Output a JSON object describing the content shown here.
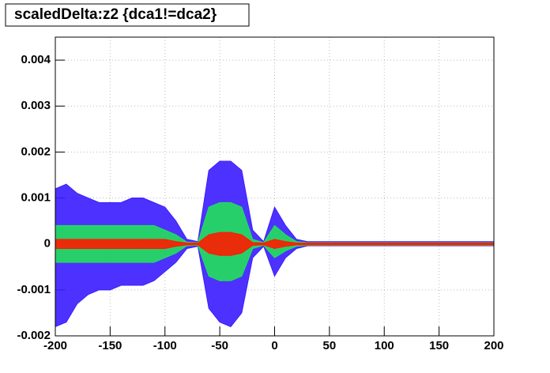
{
  "chart_data": {
    "type": "density-bands",
    "title": "scaledDelta:z2 {dca1!=dca2}",
    "x": [
      -200,
      -190,
      -180,
      -170,
      -160,
      -150,
      -140,
      -130,
      -120,
      -110,
      -100,
      -90,
      -80,
      -70,
      -60,
      -50,
      -40,
      -30,
      -20,
      -10,
      0,
      10,
      20,
      30,
      40,
      50,
      60,
      70,
      80,
      90,
      100,
      110,
      120,
      130,
      140,
      150,
      160,
      170,
      180,
      190,
      200
    ],
    "series": [
      {
        "color": "#3a1cff",
        "upper": [
          0.0012,
          0.0013,
          0.0011,
          0.001,
          0.0009,
          0.0009,
          0.0009,
          0.001,
          0.001,
          0.0009,
          0.0008,
          0.0005,
          0.0001,
          5e-05,
          0.0016,
          0.0018,
          0.0018,
          0.0016,
          0.0003,
          5e-05,
          0.0008,
          0.0004,
          0.0001,
          5e-05,
          5e-05,
          5e-05,
          5e-05,
          5e-05,
          5e-05,
          5e-05,
          5e-05,
          5e-05,
          5e-05,
          5e-05,
          5e-05,
          5e-05,
          5e-05,
          5e-05,
          5e-05,
          5e-05,
          5e-05
        ],
        "lower": [
          -0.0018,
          -0.0017,
          -0.0013,
          -0.0011,
          -0.001,
          -0.001,
          -0.0009,
          -0.0009,
          -0.0009,
          -0.0008,
          -0.0006,
          -0.0004,
          -0.0001,
          -5e-05,
          -0.0014,
          -0.0017,
          -0.0018,
          -0.0015,
          -0.0003,
          -5e-05,
          -0.0007,
          -0.0003,
          -0.0001,
          -4e-05,
          -4e-05,
          -4e-05,
          -4e-05,
          -4e-05,
          -4e-05,
          -4e-05,
          -4e-05,
          -4e-05,
          -4e-05,
          -4e-05,
          -4e-05,
          -4e-05,
          -4e-05,
          -4e-05,
          -4e-05,
          -4e-05,
          -4e-05
        ]
      },
      {
        "color": "#22e05a",
        "upper": [
          0.0004,
          0.0004,
          0.0004,
          0.0004,
          0.0004,
          0.0004,
          0.0004,
          0.0004,
          0.0004,
          0.0004,
          0.0003,
          0.0002,
          4e-05,
          3e-05,
          0.0008,
          0.0009,
          0.0009,
          0.0008,
          0.0001,
          3e-05,
          0.0004,
          0.0002,
          5e-05,
          3e-05,
          3e-05,
          3e-05,
          3e-05,
          3e-05,
          3e-05,
          3e-05,
          3e-05,
          3e-05,
          3e-05,
          3e-05,
          3e-05,
          3e-05,
          3e-05,
          3e-05,
          3e-05,
          3e-05,
          3e-05
        ],
        "lower": [
          -0.0004,
          -0.0004,
          -0.0004,
          -0.0004,
          -0.0004,
          -0.0004,
          -0.0004,
          -0.0004,
          -0.0004,
          -0.0004,
          -0.0003,
          -0.0002,
          -4e-05,
          -3e-05,
          -0.0007,
          -0.0008,
          -0.0008,
          -0.0007,
          -0.0001,
          -3e-05,
          -0.0003,
          -0.00015,
          -5e-05,
          -3e-05,
          -3e-05,
          -3e-05,
          -3e-05,
          -3e-05,
          -3e-05,
          -3e-05,
          -3e-05,
          -3e-05,
          -3e-05,
          -3e-05,
          -3e-05,
          -3e-05,
          -3e-05,
          -3e-05,
          -3e-05,
          -3e-05,
          -3e-05
        ]
      },
      {
        "color": "#ff1a00",
        "upper": [
          0.0001,
          0.0001,
          0.0001,
          0.0001,
          0.0001,
          0.0001,
          0.0001,
          0.0001,
          0.0001,
          0.0001,
          0.0001,
          5e-05,
          2e-05,
          2e-05,
          0.0002,
          0.00025,
          0.00025,
          0.0002,
          3e-05,
          2e-05,
          0.0001,
          5e-05,
          2e-05,
          2e-05,
          2e-05,
          2e-05,
          2e-05,
          2e-05,
          2e-05,
          2e-05,
          2e-05,
          2e-05,
          2e-05,
          2e-05,
          2e-05,
          2e-05,
          2e-05,
          2e-05,
          2e-05,
          2e-05,
          2e-05
        ],
        "lower": [
          -0.0001,
          -0.0001,
          -0.0001,
          -0.0001,
          -0.0001,
          -0.0001,
          -0.0001,
          -0.0001,
          -0.0001,
          -0.0001,
          -0.0001,
          -5e-05,
          -2e-05,
          -2e-05,
          -0.0002,
          -0.00025,
          -0.00025,
          -0.0002,
          -3e-05,
          -2e-05,
          -0.0001,
          -5e-05,
          -2e-05,
          -2e-05,
          -2e-05,
          -2e-05,
          -2e-05,
          -2e-05,
          -2e-05,
          -2e-05,
          -2e-05,
          -2e-05,
          -2e-05,
          -2e-05,
          -2e-05,
          -2e-05,
          -2e-05,
          -2e-05,
          -2e-05,
          -2e-05,
          -2e-05
        ]
      }
    ],
    "xlim": [
      -200,
      200
    ],
    "xticks": [
      -200,
      -150,
      -100,
      -50,
      0,
      50,
      100,
      150,
      200
    ],
    "ylim": [
      -0.002,
      0.0045
    ],
    "yticks": [
      -0.002,
      -0.001,
      0,
      0.001,
      0.002,
      0.003,
      0.004
    ],
    "grid": true
  }
}
